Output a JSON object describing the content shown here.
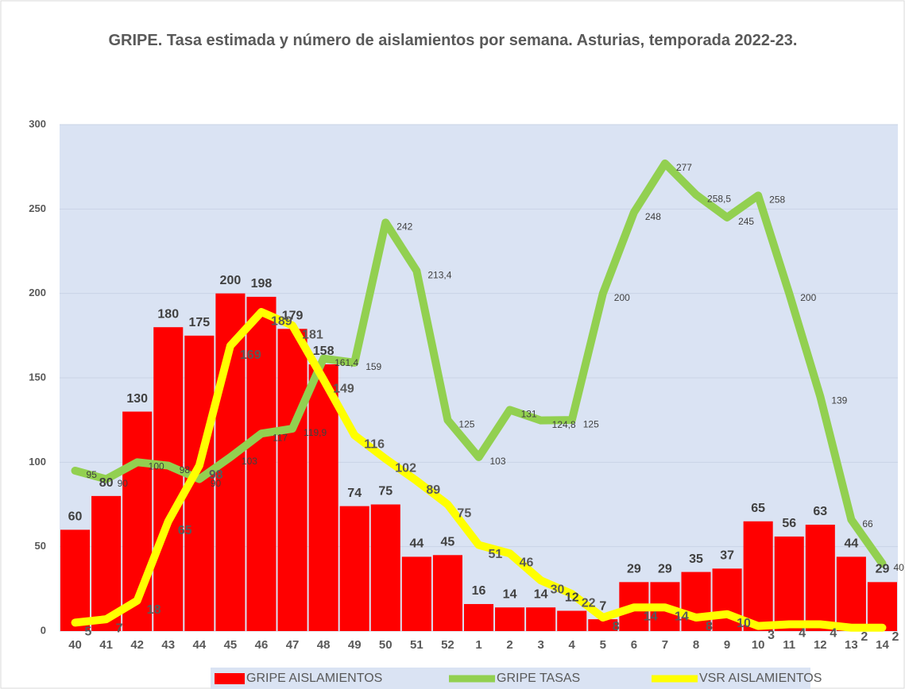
{
  "chart_data": {
    "type": "bar-line",
    "title": "GRIPE. Tasa estimada y número de aislamientos por semana. Asturias, temporada 2022-23.",
    "categories": [
      "40",
      "41",
      "42",
      "43",
      "44",
      "45",
      "46",
      "47",
      "48",
      "49",
      "50",
      "51",
      "52",
      "1",
      "2",
      "3",
      "4",
      "5",
      "6",
      "7",
      "8",
      "9",
      "10",
      "11",
      "12",
      "13",
      "14"
    ],
    "ylim": [
      0,
      300
    ],
    "yticks": [
      0,
      50,
      100,
      150,
      200,
      250,
      300
    ],
    "grid": true,
    "legend": "bottom",
    "series": [
      {
        "name": "GRIPE AISLAMIENTOS",
        "type": "bar",
        "color": "#ff0000",
        "values": [
          60,
          80,
          130,
          180,
          175,
          200,
          198,
          179,
          158,
          74,
          75,
          44,
          45,
          16,
          14,
          14,
          12,
          7,
          29,
          29,
          35,
          37,
          65,
          56,
          63,
          44,
          29
        ]
      },
      {
        "name": "GRIPE TASAS",
        "type": "line",
        "color": "#92d050",
        "values": [
          95,
          90,
          100,
          98,
          90,
          103,
          117,
          119.9,
          161.4,
          159,
          242,
          213.4,
          125,
          103,
          131,
          124.8,
          125,
          200,
          248,
          277,
          258.5,
          245,
          258,
          200,
          139,
          66,
          40
        ],
        "value_labels": [
          "95",
          "90",
          "100",
          "98",
          "90",
          "103",
          "117",
          "119,9",
          "161,4",
          "159",
          "242",
          "213,4",
          "125",
          "103",
          "131",
          "124,8",
          "125",
          "200",
          "248",
          "277",
          "258,5",
          "245",
          "258",
          "200",
          "139",
          "66",
          "40"
        ]
      },
      {
        "name": "VSR AISLAMIENTOS",
        "type": "line",
        "color": "#ffff00",
        "values": [
          5,
          7,
          18,
          65,
          98,
          169,
          189,
          181,
          149,
          116,
          102,
          89,
          75,
          51,
          46,
          30,
          22,
          8,
          14,
          14,
          8,
          10,
          3,
          4,
          4,
          2,
          2
        ]
      }
    ]
  }
}
